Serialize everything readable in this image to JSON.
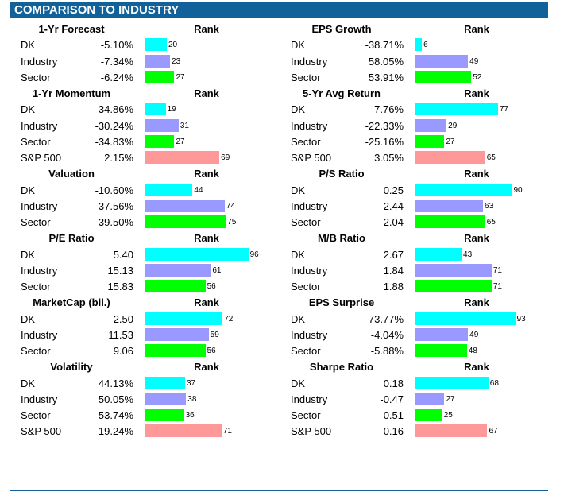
{
  "header": {
    "title": "COMPARISON TO INDUSTRY"
  },
  "rank_header": "Rank",
  "colors": {
    "header": "#11629a",
    "DK": "#00ffff",
    "Industry": "#9999ff",
    "Sector": "#00ff00",
    "S&P 500": "#ff9999"
  },
  "chart_data": {
    "type": "bar",
    "title": "COMPARISON TO INDUSTRY",
    "rank_scale": [
      0,
      100
    ],
    "metrics": [
      {
        "name": "1-Yr Forecast",
        "rows": [
          {
            "label": "DK",
            "value": "-5.10%",
            "rank": 20
          },
          {
            "label": "Industry",
            "value": "-7.34%",
            "rank": 23
          },
          {
            "label": "Sector",
            "value": "-6.24%",
            "rank": 27
          }
        ]
      },
      {
        "name": "EPS Growth",
        "rows": [
          {
            "label": "DK",
            "value": "-38.71%",
            "rank": 6
          },
          {
            "label": "Industry",
            "value": "58.05%",
            "rank": 49
          },
          {
            "label": "Sector",
            "value": "53.91%",
            "rank": 52
          }
        ]
      },
      {
        "name": "1-Yr Momentum",
        "rows": [
          {
            "label": "DK",
            "value": "-34.86%",
            "rank": 19
          },
          {
            "label": "Industry",
            "value": "-30.24%",
            "rank": 31
          },
          {
            "label": "Sector",
            "value": "-34.83%",
            "rank": 27
          },
          {
            "label": "S&P 500",
            "value": "2.15%",
            "rank": 69
          }
        ]
      },
      {
        "name": "5-Yr Avg Return",
        "rows": [
          {
            "label": "DK",
            "value": "7.76%",
            "rank": 77
          },
          {
            "label": "Industry",
            "value": "-22.33%",
            "rank": 29
          },
          {
            "label": "Sector",
            "value": "-25.16%",
            "rank": 27
          },
          {
            "label": "S&P 500",
            "value": "3.05%",
            "rank": 65
          }
        ]
      },
      {
        "name": "Valuation",
        "rows": [
          {
            "label": "DK",
            "value": "-10.60%",
            "rank": 44
          },
          {
            "label": "Industry",
            "value": "-37.56%",
            "rank": 74
          },
          {
            "label": "Sector",
            "value": "-39.50%",
            "rank": 75
          }
        ]
      },
      {
        "name": "P/S Ratio",
        "rows": [
          {
            "label": "DK",
            "value": "0.25",
            "rank": 90
          },
          {
            "label": "Industry",
            "value": "2.44",
            "rank": 63
          },
          {
            "label": "Sector",
            "value": "2.04",
            "rank": 65
          }
        ]
      },
      {
        "name": "P/E Ratio",
        "rows": [
          {
            "label": "DK",
            "value": "5.40",
            "rank": 96
          },
          {
            "label": "Industry",
            "value": "15.13",
            "rank": 61
          },
          {
            "label": "Sector",
            "value": "15.83",
            "rank": 56
          }
        ]
      },
      {
        "name": "M/B Ratio",
        "rows": [
          {
            "label": "DK",
            "value": "2.67",
            "rank": 43
          },
          {
            "label": "Industry",
            "value": "1.84",
            "rank": 71
          },
          {
            "label": "Sector",
            "value": "1.88",
            "rank": 71
          }
        ]
      },
      {
        "name": "MarketCap (bil.)",
        "rows": [
          {
            "label": "DK",
            "value": "2.50",
            "rank": 72
          },
          {
            "label": "Industry",
            "value": "11.53",
            "rank": 59
          },
          {
            "label": "Sector",
            "value": "9.06",
            "rank": 56
          }
        ]
      },
      {
        "name": "EPS Surprise",
        "rows": [
          {
            "label": "DK",
            "value": "73.77%",
            "rank": 93
          },
          {
            "label": "Industry",
            "value": "-4.04%",
            "rank": 49
          },
          {
            "label": "Sector",
            "value": "-5.88%",
            "rank": 48
          }
        ]
      },
      {
        "name": "Volatility",
        "rows": [
          {
            "label": "DK",
            "value": "44.13%",
            "rank": 37
          },
          {
            "label": "Industry",
            "value": "50.05%",
            "rank": 38
          },
          {
            "label": "Sector",
            "value": "53.74%",
            "rank": 36
          },
          {
            "label": "S&P 500",
            "value": "19.24%",
            "rank": 71
          }
        ]
      },
      {
        "name": "Sharpe Ratio",
        "rows": [
          {
            "label": "DK",
            "value": "0.18",
            "rank": 68
          },
          {
            "label": "Industry",
            "value": "-0.47",
            "rank": 27
          },
          {
            "label": "Sector",
            "value": "-0.51",
            "rank": 25
          },
          {
            "label": "S&P 500",
            "value": "0.16",
            "rank": 67
          }
        ]
      }
    ]
  }
}
